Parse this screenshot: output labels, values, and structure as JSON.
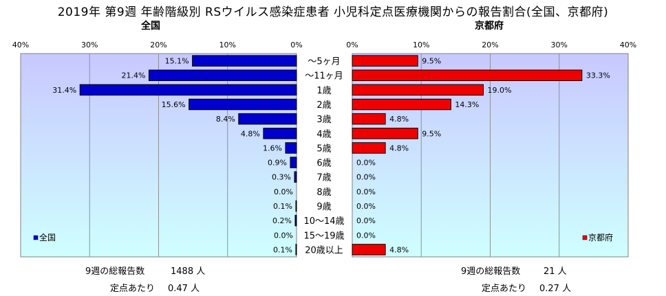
{
  "title": "2019年 第9週 年齢階級別 RSウイルス感染症患者 小児科定点医療機関からの報告割合(全国、京都府)",
  "categories": [
    "～5ヶ月",
    "～11ヶ月",
    "1歳",
    "2歳",
    "3歳",
    "4歳",
    "5歳",
    "6歳",
    "7歳",
    "8歳",
    "9歳",
    "10～14歳",
    "15～19歳",
    "20歳以上"
  ],
  "chart_data": [
    {
      "type": "bar",
      "orientation": "horizontal",
      "direction": "right-to-left",
      "title": "全国",
      "xlim": [
        0,
        40
      ],
      "ticks": [
        "0%",
        "10%",
        "20%",
        "30%",
        "40%"
      ],
      "grid": true,
      "legend": {
        "label": "全国",
        "position": "bottom-left"
      },
      "color": "#0000cc",
      "values": [
        15.1,
        21.4,
        31.4,
        15.6,
        8.4,
        4.8,
        1.6,
        0.9,
        0.3,
        0.0,
        0.1,
        0.2,
        0.0,
        0.1
      ],
      "labels": [
        "15.1%",
        "21.4%",
        "31.4%",
        "15.6%",
        "8.4%",
        "4.8%",
        "1.6%",
        "0.9%",
        "0.3%",
        "0.0%",
        "0.1%",
        "0.2%",
        "0.0%",
        "0.1%"
      ]
    },
    {
      "type": "bar",
      "orientation": "horizontal",
      "direction": "left-to-right",
      "title": "京都府",
      "xlim": [
        0,
        40
      ],
      "ticks": [
        "0%",
        "10%",
        "20%",
        "30%",
        "40%"
      ],
      "grid": true,
      "legend": {
        "label": "京都府",
        "position": "bottom-right"
      },
      "color": "#ee0000",
      "values": [
        9.5,
        33.3,
        19.0,
        14.3,
        4.8,
        9.5,
        4.8,
        0.0,
        0.0,
        0.0,
        0.0,
        0.0,
        0.0,
        4.8
      ],
      "labels": [
        "9.5%",
        "33.3%",
        "19.0%",
        "14.3%",
        "4.8%",
        "9.5%",
        "4.8%",
        "0.0%",
        "0.0%",
        "0.0%",
        "0.0%",
        "0.0%",
        "0.0%",
        "4.8%"
      ]
    }
  ],
  "footer": {
    "national": {
      "total_label": "9週の総報告数",
      "total_value": "1488 人",
      "per_label": "定点あたり",
      "per_value": "0.47 人"
    },
    "kyoto": {
      "total_label": "9週の総報告数",
      "total_value": "21 人",
      "per_label": "定点あたり",
      "per_value": "0.27 人"
    }
  },
  "colors": {
    "plot_bg_top": "#c8c8ff",
    "plot_bg_bottom": "#cfffff",
    "national": "#0000cc",
    "kyoto": "#ee0000"
  }
}
